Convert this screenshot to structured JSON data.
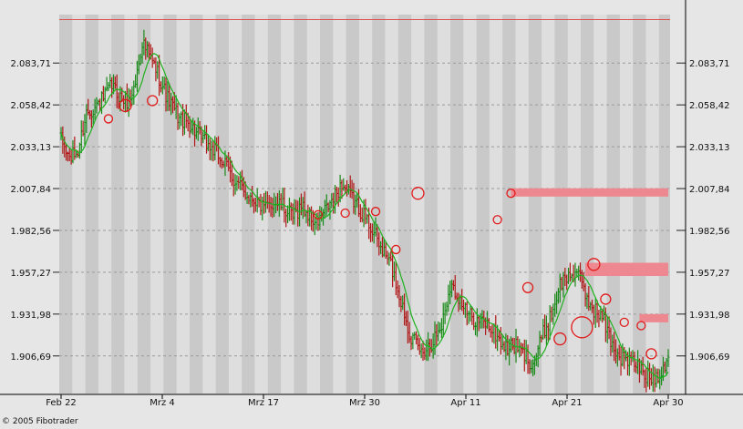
{
  "footer": {
    "copyright": "© 2005 Fibotrader"
  },
  "colors": {
    "background": "#e6e6e6",
    "stripe_light": "#dedede",
    "stripe_dark": "#c9c9c9",
    "grid": "#9a9a9a",
    "bull": "#1a8a1a",
    "bear": "#b01818",
    "ma": "#1fb21f",
    "marker": "#e11a1a",
    "zone": "#ee8890",
    "top_line": "#e05050"
  },
  "chart_data": {
    "type": "candlestick",
    "title": "",
    "xlabel": "",
    "ylabel": "",
    "ylim": [
      1884,
      2113
    ],
    "grid": true,
    "y_ticks": [
      "2.083,71",
      "2.058,42",
      "2.033,13",
      "2.007,84",
      "1.982,56",
      "1.957,27",
      "1.931,98",
      "1.906,69"
    ],
    "y_tick_values": [
      2083.71,
      2058.42,
      2033.13,
      2007.84,
      1982.56,
      1957.27,
      1931.98,
      1906.69
    ],
    "x_ticks": [
      "Feb 22",
      "Mrz 4",
      "Mrz 17",
      "Mrz 30",
      "Apr 11",
      "Apr 21",
      "Apr 30"
    ],
    "x_tick_index": [
      0,
      40,
      80,
      120,
      160,
      200,
      240
    ],
    "reference_line": {
      "value": 2110
    },
    "close_path": [
      [
        0,
        2037
      ],
      [
        5,
        2026
      ],
      [
        10,
        2030
      ],
      [
        15,
        2054
      ],
      [
        20,
        2057
      ],
      [
        25,
        2062
      ],
      [
        30,
        2070
      ],
      [
        35,
        2063
      ],
      [
        40,
        2060
      ],
      [
        44,
        2072
      ],
      [
        48,
        2097
      ],
      [
        52,
        2088
      ],
      [
        57,
        2078
      ],
      [
        63,
        2062
      ],
      [
        70,
        2050
      ],
      [
        76,
        2047
      ],
      [
        81,
        2040
      ],
      [
        87,
        2034
      ],
      [
        92,
        2029
      ],
      [
        97,
        2022
      ],
      [
        103,
        2012
      ],
      [
        109,
        2005
      ],
      [
        114,
        2002
      ],
      [
        120,
        1995
      ],
      [
        126,
        2000
      ],
      [
        131,
        1997
      ],
      [
        137,
        1990
      ],
      [
        142,
        1998
      ],
      [
        146,
        1992
      ],
      [
        151,
        1986
      ],
      [
        156,
        1994
      ],
      [
        161,
        2001
      ],
      [
        166,
        2011
      ],
      [
        171,
        2003
      ],
      [
        177,
        1995
      ],
      [
        183,
        1985
      ],
      [
        189,
        1972
      ],
      [
        195,
        1962
      ],
      [
        201,
        1940
      ],
      [
        207,
        1918
      ],
      [
        213,
        1909
      ],
      [
        219,
        1915
      ],
      [
        225,
        1925
      ],
      [
        230,
        1950
      ],
      [
        235,
        1943
      ],
      [
        240,
        1932
      ],
      [
        246,
        1928
      ],
      [
        252,
        1926
      ],
      [
        258,
        1918
      ],
      [
        263,
        1911
      ],
      [
        268,
        1913
      ],
      [
        273,
        1908
      ],
      [
        279,
        1902
      ],
      [
        285,
        1920
      ],
      [
        290,
        1932
      ],
      [
        295,
        1950
      ],
      [
        300,
        1955
      ],
      [
        305,
        1958
      ],
      [
        310,
        1943
      ],
      [
        315,
        1935
      ],
      [
        320,
        1930
      ],
      [
        325,
        1916
      ],
      [
        330,
        1906
      ],
      [
        335,
        1904
      ],
      [
        340,
        1902
      ],
      [
        345,
        1895
      ],
      [
        350,
        1893
      ],
      [
        355,
        1898
      ],
      [
        359,
        1908
      ]
    ],
    "n_points": 360,
    "moving_average": {
      "period": 10
    },
    "zones": [
      {
        "x_start": 266,
        "x_end": 360,
        "y_low": 2003,
        "y_high": 2008
      },
      {
        "x_start": 310,
        "x_end": 360,
        "y_low": 1955,
        "y_high": 1963
      },
      {
        "x_start": 342,
        "x_end": 360,
        "y_low": 1927,
        "y_high": 1932
      }
    ],
    "markers": [
      {
        "x": 28,
        "y": 2050,
        "r": 3
      },
      {
        "x": 38,
        "y": 2058,
        "r": 5
      },
      {
        "x": 54,
        "y": 2061,
        "r": 4
      },
      {
        "x": 152,
        "y": 1992,
        "r": 3
      },
      {
        "x": 168,
        "y": 1993,
        "r": 3
      },
      {
        "x": 186,
        "y": 1994,
        "r": 3
      },
      {
        "x": 198,
        "y": 1971,
        "r": 3
      },
      {
        "x": 211,
        "y": 2005,
        "r": 5
      },
      {
        "x": 258,
        "y": 1989,
        "r": 3
      },
      {
        "x": 266,
        "y": 2005,
        "r": 3
      },
      {
        "x": 276,
        "y": 1948,
        "r": 4
      },
      {
        "x": 295,
        "y": 1917,
        "r": 5
      },
      {
        "x": 308,
        "y": 1924,
        "r": 10
      },
      {
        "x": 315,
        "y": 1962,
        "r": 5
      },
      {
        "x": 322,
        "y": 1941,
        "r": 4
      },
      {
        "x": 333,
        "y": 1927,
        "r": 3
      },
      {
        "x": 343,
        "y": 1925,
        "r": 3
      },
      {
        "x": 349,
        "y": 1908,
        "r": 4
      }
    ]
  }
}
